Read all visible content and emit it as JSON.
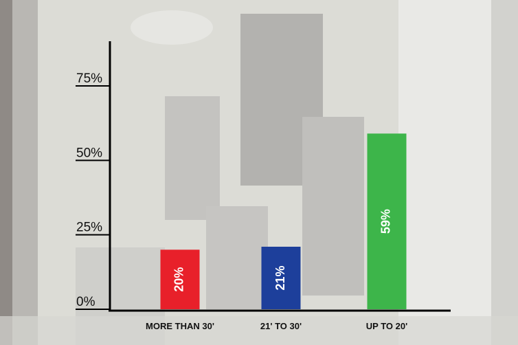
{
  "chart_data": {
    "type": "bar",
    "categories": [
      "MORE THAN 30'",
      "21' TO 30'",
      "UP TO 20'"
    ],
    "values": [
      20,
      21,
      59
    ],
    "value_labels": [
      "20%",
      "21%",
      "59%"
    ],
    "colors": [
      "#e8202a",
      "#1d3f9b",
      "#3db54a"
    ],
    "ylim": [
      0,
      90
    ],
    "yticks": [
      {
        "value": 0,
        "label": "0%"
      },
      {
        "value": 25,
        "label": "25%"
      },
      {
        "value": 50,
        "label": "50%"
      },
      {
        "value": 75,
        "label": "75%"
      }
    ]
  }
}
